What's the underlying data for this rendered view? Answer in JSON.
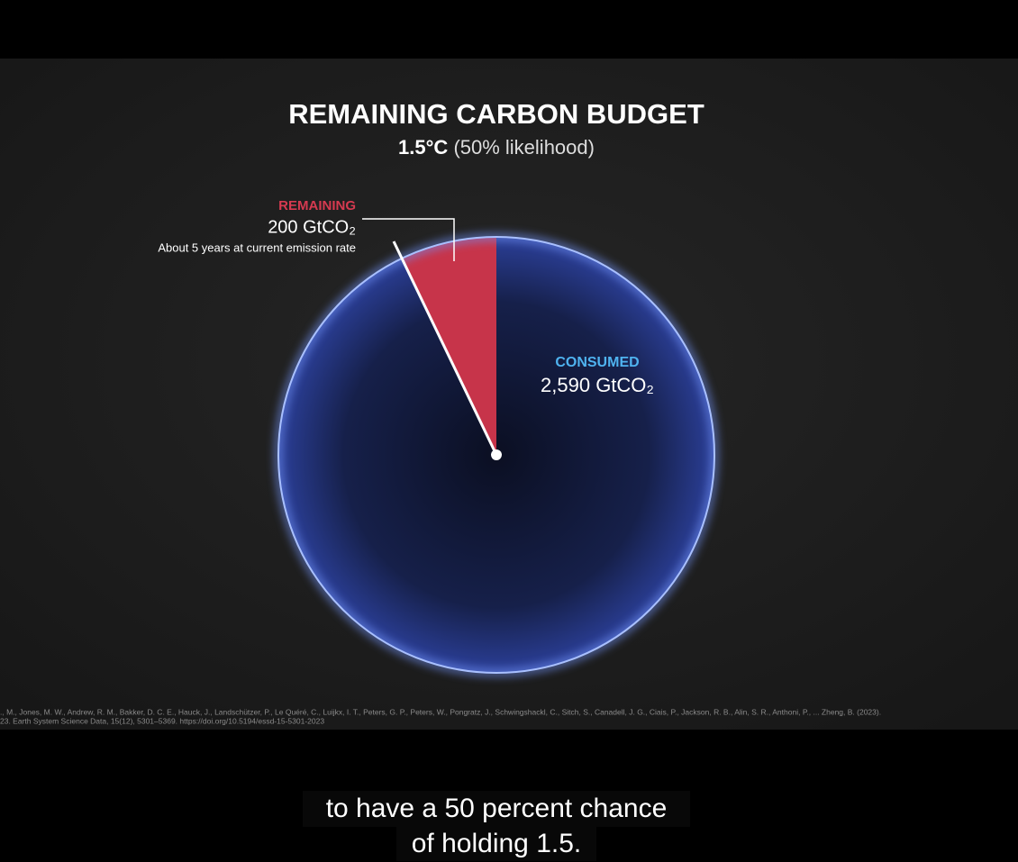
{
  "chart_data": {
    "type": "pie",
    "title": "REMAINING CARBON BUDGET",
    "subtitle": [
      "1.5°C",
      "(50% likelihood)"
    ],
    "categories": [
      "REMAINING",
      "CONSUMED"
    ],
    "values": [
      200,
      2590
    ],
    "value_labels": [
      "200 GtCO₂",
      "2,590 GtCO₂"
    ],
    "colors": [
      "#c7344a",
      "#2b3f98"
    ],
    "annotation": "About 5 years at current emission rate"
  },
  "citation": [
    "., M., Jones, M. W., Andrew, R. M., Bakker, D. C. E., Hauck, J., Landschützer, P., Le Quéré, C., Luijkx, I. T., Peters, G. P., Peters, W., Pongratz, J., Schwingshackl, C., Sitch, S., Canadell, J. G., Ciais, P., Jackson, R. B., Alin, S. R., Anthoni, P., ... Zheng, B. (2023).",
    "23. Earth System Science Data, 15(12), 5301–5369. https://doi.org/10.5194/essd-15-5301-2023"
  ],
  "captions": [
    "to have a 50 percent chance",
    "of holding 1.5."
  ]
}
